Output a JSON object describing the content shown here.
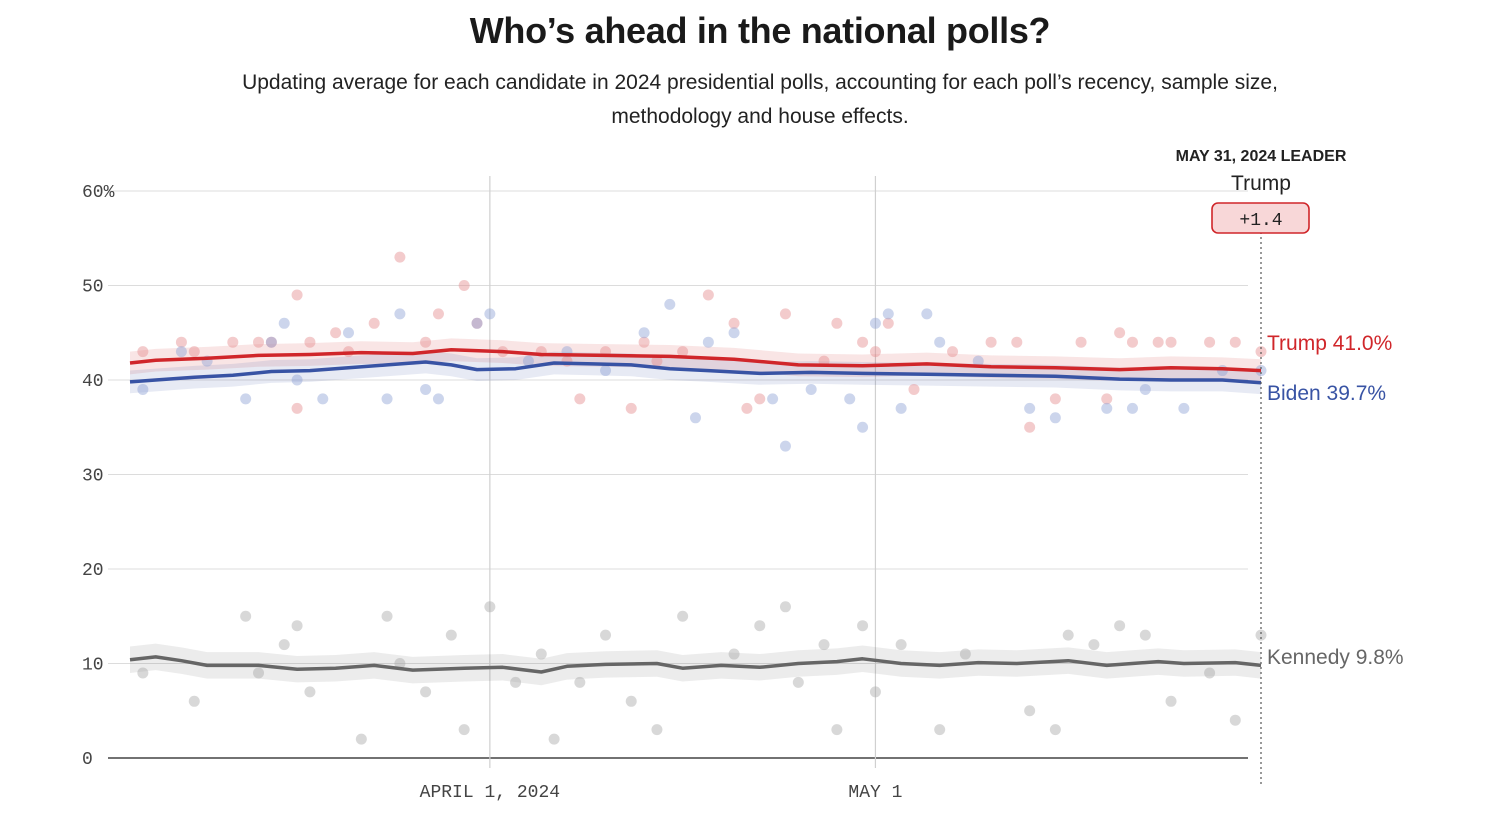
{
  "title": "Who’s ahead in the national polls?",
  "subtitle": "Updating average for each candidate in 2024 presidential polls, accounting for each poll’s recency, sample size, methodology and house effects.",
  "leader": {
    "heading": "MAY 31, 2024 LEADER",
    "name": "Trump",
    "margin": "+1.4",
    "color": "#d0262a"
  },
  "chart_data": {
    "type": "line",
    "x_start": "2024-03-04",
    "x_end": "2024-05-31",
    "ylim": [
      0,
      60
    ],
    "y_ticks": [
      0,
      10,
      20,
      30,
      40,
      50,
      60
    ],
    "y_tick_labels": [
      "0",
      "10",
      "20",
      "30",
      "40",
      "50",
      "60%"
    ],
    "x_ticks": [
      {
        "date": "2024-04-01",
        "label": "APRIL 1, 2024"
      },
      {
        "date": "2024-05-01",
        "label": "MAY 1"
      }
    ],
    "grid": true,
    "series": [
      {
        "name": "Trump",
        "end_label": "Trump 41.0%",
        "color": "#d0262a",
        "band": 1.2,
        "average": [
          [
            "2024-03-04",
            41.8
          ],
          [
            "2024-03-06",
            42.1
          ],
          [
            "2024-03-10",
            42.3
          ],
          [
            "2024-03-14",
            42.6
          ],
          [
            "2024-03-18",
            42.7
          ],
          [
            "2024-03-22",
            42.9
          ],
          [
            "2024-03-26",
            42.8
          ],
          [
            "2024-03-29",
            43.2
          ],
          [
            "2024-04-02",
            43.0
          ],
          [
            "2024-04-05",
            42.7
          ],
          [
            "2024-04-10",
            42.6
          ],
          [
            "2024-04-15",
            42.5
          ],
          [
            "2024-04-20",
            42.2
          ],
          [
            "2024-04-25",
            41.6
          ],
          [
            "2024-04-30",
            41.5
          ],
          [
            "2024-05-05",
            41.7
          ],
          [
            "2024-05-10",
            41.4
          ],
          [
            "2024-05-15",
            41.3
          ],
          [
            "2024-05-20",
            41.1
          ],
          [
            "2024-05-24",
            41.3
          ],
          [
            "2024-05-28",
            41.2
          ],
          [
            "2024-05-31",
            41.0
          ]
        ],
        "polls": [
          [
            "2024-03-05",
            43
          ],
          [
            "2024-03-08",
            44
          ],
          [
            "2024-03-09",
            43
          ],
          [
            "2024-03-12",
            44
          ],
          [
            "2024-03-14",
            44
          ],
          [
            "2024-03-15",
            44
          ],
          [
            "2024-03-17",
            49
          ],
          [
            "2024-03-17",
            37
          ],
          [
            "2024-03-18",
            44
          ],
          [
            "2024-03-20",
            45
          ],
          [
            "2024-03-21",
            43
          ],
          [
            "2024-03-23",
            46
          ],
          [
            "2024-03-25",
            53
          ],
          [
            "2024-03-27",
            44
          ],
          [
            "2024-03-28",
            47
          ],
          [
            "2024-03-30",
            50
          ],
          [
            "2024-03-31",
            46
          ],
          [
            "2024-04-02",
            43
          ],
          [
            "2024-04-05",
            43
          ],
          [
            "2024-04-07",
            42
          ],
          [
            "2024-04-08",
            38
          ],
          [
            "2024-04-10",
            43
          ],
          [
            "2024-04-12",
            37
          ],
          [
            "2024-04-13",
            44
          ],
          [
            "2024-04-14",
            42
          ],
          [
            "2024-04-16",
            43
          ],
          [
            "2024-04-18",
            49
          ],
          [
            "2024-04-20",
            46
          ],
          [
            "2024-04-21",
            37
          ],
          [
            "2024-04-22",
            38
          ],
          [
            "2024-04-24",
            47
          ],
          [
            "2024-04-27",
            42
          ],
          [
            "2024-04-28",
            46
          ],
          [
            "2024-04-30",
            44
          ],
          [
            "2024-05-01",
            43
          ],
          [
            "2024-05-02",
            46
          ],
          [
            "2024-05-04",
            39
          ],
          [
            "2024-05-07",
            43
          ],
          [
            "2024-05-10",
            44
          ],
          [
            "2024-05-12",
            44
          ],
          [
            "2024-05-13",
            35
          ],
          [
            "2024-05-15",
            38
          ],
          [
            "2024-05-17",
            44
          ],
          [
            "2024-05-19",
            38
          ],
          [
            "2024-05-20",
            45
          ],
          [
            "2024-05-21",
            44
          ],
          [
            "2024-05-23",
            44
          ],
          [
            "2024-05-24",
            44
          ],
          [
            "2024-05-27",
            44
          ],
          [
            "2024-05-29",
            44
          ],
          [
            "2024-05-31",
            43
          ]
        ]
      },
      {
        "name": "Biden",
        "end_label": "Biden 39.7%",
        "color": "#3853a4",
        "band": 1.2,
        "average": [
          [
            "2024-03-04",
            39.8
          ],
          [
            "2024-03-06",
            40.0
          ],
          [
            "2024-03-09",
            40.3
          ],
          [
            "2024-03-12",
            40.5
          ],
          [
            "2024-03-15",
            40.9
          ],
          [
            "2024-03-18",
            41.0
          ],
          [
            "2024-03-21",
            41.3
          ],
          [
            "2024-03-24",
            41.6
          ],
          [
            "2024-03-27",
            41.9
          ],
          [
            "2024-03-29",
            41.6
          ],
          [
            "2024-03-31",
            41.1
          ],
          [
            "2024-04-03",
            41.2
          ],
          [
            "2024-04-06",
            41.8
          ],
          [
            "2024-04-09",
            41.7
          ],
          [
            "2024-04-12",
            41.6
          ],
          [
            "2024-04-15",
            41.2
          ],
          [
            "2024-04-18",
            41.0
          ],
          [
            "2024-04-22",
            40.7
          ],
          [
            "2024-04-26",
            40.8
          ],
          [
            "2024-04-30",
            40.7
          ],
          [
            "2024-05-05",
            40.6
          ],
          [
            "2024-05-10",
            40.5
          ],
          [
            "2024-05-15",
            40.4
          ],
          [
            "2024-05-20",
            40.1
          ],
          [
            "2024-05-24",
            40.0
          ],
          [
            "2024-05-28",
            40.0
          ],
          [
            "2024-05-31",
            39.7
          ]
        ],
        "polls": [
          [
            "2024-03-05",
            39
          ],
          [
            "2024-03-08",
            43
          ],
          [
            "2024-03-10",
            42
          ],
          [
            "2024-03-13",
            38
          ],
          [
            "2024-03-15",
            44
          ],
          [
            "2024-03-16",
            46
          ],
          [
            "2024-03-17",
            40
          ],
          [
            "2024-03-19",
            38
          ],
          [
            "2024-03-21",
            45
          ],
          [
            "2024-03-24",
            38
          ],
          [
            "2024-03-25",
            47
          ],
          [
            "2024-03-27",
            39
          ],
          [
            "2024-03-28",
            38
          ],
          [
            "2024-03-31",
            46
          ],
          [
            "2024-04-01",
            47
          ],
          [
            "2024-04-04",
            42
          ],
          [
            "2024-04-07",
            43
          ],
          [
            "2024-04-10",
            41
          ],
          [
            "2024-04-13",
            45
          ],
          [
            "2024-04-15",
            48
          ],
          [
            "2024-04-17",
            36
          ],
          [
            "2024-04-18",
            44
          ],
          [
            "2024-04-20",
            45
          ],
          [
            "2024-04-23",
            38
          ],
          [
            "2024-04-24",
            33
          ],
          [
            "2024-04-26",
            39
          ],
          [
            "2024-04-29",
            38
          ],
          [
            "2024-04-30",
            35
          ],
          [
            "2024-05-01",
            46
          ],
          [
            "2024-05-02",
            47
          ],
          [
            "2024-05-03",
            37
          ],
          [
            "2024-05-05",
            47
          ],
          [
            "2024-05-06",
            44
          ],
          [
            "2024-05-09",
            42
          ],
          [
            "2024-05-13",
            37
          ],
          [
            "2024-05-15",
            36
          ],
          [
            "2024-05-19",
            37
          ],
          [
            "2024-05-21",
            37
          ],
          [
            "2024-05-22",
            39
          ],
          [
            "2024-05-25",
            37
          ],
          [
            "2024-05-28",
            41
          ],
          [
            "2024-05-31",
            41
          ]
        ]
      },
      {
        "name": "Kennedy",
        "end_label": "Kennedy 9.8%",
        "color": "#666666",
        "band": 1.4,
        "average": [
          [
            "2024-03-04",
            10.4
          ],
          [
            "2024-03-06",
            10.7
          ],
          [
            "2024-03-08",
            10.3
          ],
          [
            "2024-03-10",
            9.8
          ],
          [
            "2024-03-14",
            9.8
          ],
          [
            "2024-03-17",
            9.4
          ],
          [
            "2024-03-20",
            9.5
          ],
          [
            "2024-03-23",
            9.8
          ],
          [
            "2024-03-26",
            9.3
          ],
          [
            "2024-03-30",
            9.5
          ],
          [
            "2024-04-02",
            9.6
          ],
          [
            "2024-04-05",
            9.1
          ],
          [
            "2024-04-07",
            9.7
          ],
          [
            "2024-04-10",
            9.9
          ],
          [
            "2024-04-14",
            10.0
          ],
          [
            "2024-04-16",
            9.5
          ],
          [
            "2024-04-19",
            9.8
          ],
          [
            "2024-04-22",
            9.6
          ],
          [
            "2024-04-25",
            10.0
          ],
          [
            "2024-04-28",
            10.2
          ],
          [
            "2024-04-30",
            10.5
          ],
          [
            "2024-05-03",
            10.0
          ],
          [
            "2024-05-06",
            9.8
          ],
          [
            "2024-05-09",
            10.1
          ],
          [
            "2024-05-12",
            10.0
          ],
          [
            "2024-05-16",
            10.3
          ],
          [
            "2024-05-19",
            9.8
          ],
          [
            "2024-05-23",
            10.2
          ],
          [
            "2024-05-25",
            10.0
          ],
          [
            "2024-05-29",
            10.1
          ],
          [
            "2024-05-31",
            9.8
          ]
        ],
        "polls": [
          [
            "2024-03-05",
            9
          ],
          [
            "2024-03-09",
            6
          ],
          [
            "2024-03-13",
            15
          ],
          [
            "2024-03-14",
            9
          ],
          [
            "2024-03-16",
            12
          ],
          [
            "2024-03-17",
            14
          ],
          [
            "2024-03-18",
            7
          ],
          [
            "2024-03-22",
            2
          ],
          [
            "2024-03-24",
            15
          ],
          [
            "2024-03-25",
            10
          ],
          [
            "2024-03-27",
            7
          ],
          [
            "2024-03-29",
            13
          ],
          [
            "2024-03-30",
            3
          ],
          [
            "2024-04-01",
            16
          ],
          [
            "2024-04-03",
            8
          ],
          [
            "2024-04-05",
            11
          ],
          [
            "2024-04-06",
            2
          ],
          [
            "2024-04-08",
            8
          ],
          [
            "2024-04-10",
            13
          ],
          [
            "2024-04-12",
            6
          ],
          [
            "2024-04-14",
            3
          ],
          [
            "2024-04-16",
            15
          ],
          [
            "2024-04-20",
            11
          ],
          [
            "2024-04-22",
            14
          ],
          [
            "2024-04-24",
            16
          ],
          [
            "2024-04-25",
            8
          ],
          [
            "2024-04-27",
            12
          ],
          [
            "2024-04-28",
            3
          ],
          [
            "2024-04-30",
            14
          ],
          [
            "2024-05-01",
            7
          ],
          [
            "2024-05-03",
            12
          ],
          [
            "2024-05-06",
            3
          ],
          [
            "2024-05-08",
            11
          ],
          [
            "2024-05-13",
            5
          ],
          [
            "2024-05-15",
            3
          ],
          [
            "2024-05-16",
            13
          ],
          [
            "2024-05-18",
            12
          ],
          [
            "2024-05-20",
            14
          ],
          [
            "2024-05-22",
            13
          ],
          [
            "2024-05-24",
            6
          ],
          [
            "2024-05-27",
            9
          ],
          [
            "2024-05-29",
            4
          ],
          [
            "2024-05-31",
            13
          ]
        ]
      }
    ]
  }
}
